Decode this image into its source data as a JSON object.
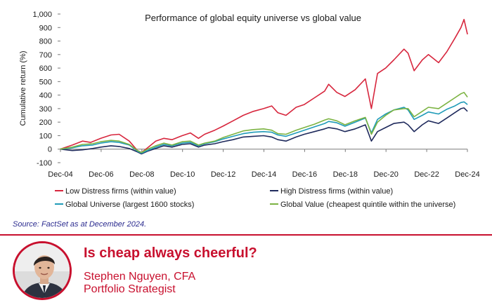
{
  "chart_data": {
    "type": "line",
    "title": "Performance of global equity universe vs global value",
    "ylabel": "Cumulative return (%)",
    "xlabel": "",
    "ylim": [
      -100,
      1000
    ],
    "yticks": [
      -100,
      0,
      100,
      200,
      300,
      400,
      500,
      600,
      700,
      800,
      900,
      1000
    ],
    "ytick_labels": [
      "-100",
      "0",
      "100",
      "200",
      "300",
      "400",
      "500",
      "600",
      "700",
      "800",
      "900",
      "1,000"
    ],
    "xlim": [
      2004.917,
      2024.917
    ],
    "xticks": [
      2004.917,
      2006.917,
      2008.917,
      2010.917,
      2012.917,
      2014.917,
      2016.917,
      2018.917,
      2020.917,
      2022.917,
      2024.917
    ],
    "xtick_labels": [
      "Dec-04",
      "Dec-06",
      "Dec-08",
      "Dec-10",
      "Dec-12",
      "Dec-14",
      "Dec-16",
      "Dec-18",
      "Dec-20",
      "Dec-22",
      "Dec-24"
    ],
    "legend_position": "bottom",
    "series": [
      {
        "name": "Low Distress firms (within value)",
        "color": "#d7263d",
        "x": [
          2004.9,
          2005.5,
          2006.0,
          2006.4,
          2006.9,
          2007.4,
          2007.8,
          2008.3,
          2008.7,
          2008.9,
          2009.2,
          2009.6,
          2010.0,
          2010.4,
          2010.9,
          2011.3,
          2011.7,
          2012.0,
          2012.5,
          2012.9,
          2013.4,
          2013.9,
          2014.4,
          2014.9,
          2015.3,
          2015.6,
          2016.0,
          2016.5,
          2016.9,
          2017.4,
          2017.9,
          2018.1,
          2018.5,
          2018.9,
          2019.4,
          2019.9,
          2020.2,
          2020.5,
          2020.9,
          2021.3,
          2021.8,
          2022.0,
          2022.3,
          2022.7,
          2023.0,
          2023.5,
          2023.9,
          2024.3,
          2024.6,
          2024.75,
          2024.92
        ],
        "y": [
          0,
          30,
          60,
          50,
          80,
          105,
          110,
          60,
          -10,
          -25,
          10,
          60,
          80,
          70,
          100,
          120,
          80,
          110,
          140,
          170,
          210,
          250,
          280,
          300,
          320,
          270,
          250,
          310,
          330,
          380,
          430,
          480,
          420,
          390,
          440,
          520,
          300,
          560,
          600,
          660,
          740,
          710,
          580,
          660,
          700,
          640,
          720,
          820,
          900,
          960,
          850
        ]
      },
      {
        "name": "High Distress firms (within value)",
        "color": "#1f2a5c",
        "x": [
          2004.9,
          2005.5,
          2006.0,
          2006.5,
          2006.9,
          2007.4,
          2007.8,
          2008.3,
          2008.7,
          2008.9,
          2009.2,
          2009.6,
          2010.0,
          2010.4,
          2010.9,
          2011.3,
          2011.7,
          2012.0,
          2012.5,
          2012.9,
          2013.4,
          2013.9,
          2014.4,
          2014.9,
          2015.3,
          2015.6,
          2016.0,
          2016.5,
          2016.9,
          2017.4,
          2017.9,
          2018.1,
          2018.5,
          2018.9,
          2019.4,
          2019.9,
          2020.2,
          2020.5,
          2020.9,
          2021.3,
          2021.8,
          2022.0,
          2022.3,
          2022.7,
          2023.0,
          2023.5,
          2023.9,
          2024.3,
          2024.6,
          2024.75,
          2024.92
        ],
        "y": [
          0,
          -10,
          -5,
          5,
          15,
          25,
          20,
          5,
          -20,
          -35,
          -15,
          5,
          25,
          15,
          35,
          40,
          15,
          30,
          40,
          55,
          70,
          90,
          95,
          100,
          90,
          70,
          60,
          90,
          110,
          130,
          150,
          160,
          150,
          130,
          150,
          180,
          60,
          130,
          160,
          190,
          200,
          180,
          130,
          180,
          210,
          190,
          230,
          270,
          300,
          305,
          280
        ]
      },
      {
        "name": "Global Universe (largest 1600 stocks)",
        "color": "#1f9bb8",
        "x": [
          2004.9,
          2005.5,
          2006.0,
          2006.5,
          2006.9,
          2007.4,
          2007.8,
          2008.3,
          2008.7,
          2008.9,
          2009.2,
          2009.6,
          2010.0,
          2010.4,
          2010.9,
          2011.3,
          2011.7,
          2012.0,
          2012.5,
          2012.9,
          2013.4,
          2013.9,
          2014.4,
          2014.9,
          2015.3,
          2015.6,
          2016.0,
          2016.5,
          2016.9,
          2017.4,
          2017.9,
          2018.1,
          2018.5,
          2018.9,
          2019.4,
          2019.9,
          2020.2,
          2020.5,
          2020.9,
          2021.3,
          2021.8,
          2022.0,
          2022.3,
          2022.7,
          2023.0,
          2023.5,
          2023.9,
          2024.3,
          2024.6,
          2024.75,
          2024.92
        ],
        "y": [
          0,
          10,
          25,
          30,
          45,
          55,
          50,
          30,
          -15,
          -30,
          -10,
          15,
          35,
          25,
          45,
          50,
          25,
          40,
          55,
          75,
          95,
          115,
          125,
          130,
          125,
          105,
          95,
          120,
          140,
          165,
          190,
          205,
          195,
          170,
          200,
          230,
          120,
          220,
          260,
          290,
          310,
          290,
          220,
          250,
          275,
          260,
          295,
          320,
          345,
          350,
          330
        ]
      },
      {
        "name": "Global Value (cheapest quintile within the universe)",
        "color": "#7cb342",
        "x": [
          2004.9,
          2005.5,
          2006.0,
          2006.5,
          2006.9,
          2007.4,
          2007.8,
          2008.3,
          2008.7,
          2008.9,
          2009.2,
          2009.6,
          2010.0,
          2010.4,
          2010.9,
          2011.3,
          2011.7,
          2012.0,
          2012.5,
          2012.9,
          2013.4,
          2013.9,
          2014.4,
          2014.9,
          2015.3,
          2015.6,
          2016.0,
          2016.5,
          2016.9,
          2017.4,
          2017.9,
          2018.1,
          2018.5,
          2018.9,
          2019.4,
          2019.9,
          2020.2,
          2020.5,
          2020.9,
          2021.3,
          2021.8,
          2022.0,
          2022.3,
          2022.7,
          2023.0,
          2023.5,
          2023.9,
          2024.3,
          2024.6,
          2024.75,
          2024.92
        ],
        "y": [
          0,
          15,
          35,
          40,
          55,
          65,
          60,
          35,
          -10,
          -25,
          0,
          25,
          45,
          30,
          55,
          60,
          30,
          45,
          60,
          85,
          110,
          135,
          145,
          150,
          140,
          115,
          110,
          140,
          160,
          185,
          215,
          225,
          210,
          180,
          210,
          235,
          110,
          200,
          250,
          290,
          300,
          300,
          240,
          280,
          310,
          300,
          340,
          380,
          410,
          420,
          385
        ]
      }
    ]
  },
  "source": "Source: FactSet as at December 2024.",
  "footer": {
    "headline": "Is cheap always cheerful?",
    "author": "Stephen Nguyen, CFA",
    "role": "Portfolio Strategist"
  }
}
